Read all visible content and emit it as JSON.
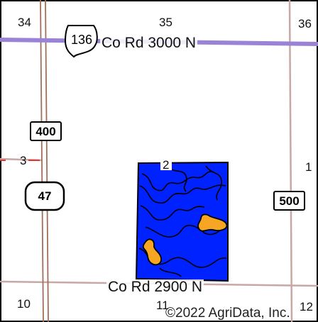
{
  "map": {
    "section_numbers": [
      "34",
      "35",
      "36",
      "3",
      "2",
      "1",
      "10",
      "11",
      "12"
    ],
    "roads": {
      "north": "Co Rd 3000 N",
      "south": "Co Rd 2900 N"
    },
    "shields": {
      "us_route": "136",
      "county_400": "400",
      "state_route": "47",
      "county_500": "500"
    },
    "copyright": "©2022 AgriData, Inc.",
    "colors": {
      "background": "#ffffff",
      "section_line": "#c9a7a4",
      "highway": "#a0705a",
      "us_route_line": "#9a83d6",
      "field_fill": "#0022ff",
      "soil_patch": "#f6a623",
      "outline": "#000000",
      "section_marker_red": "#e23636"
    }
  }
}
